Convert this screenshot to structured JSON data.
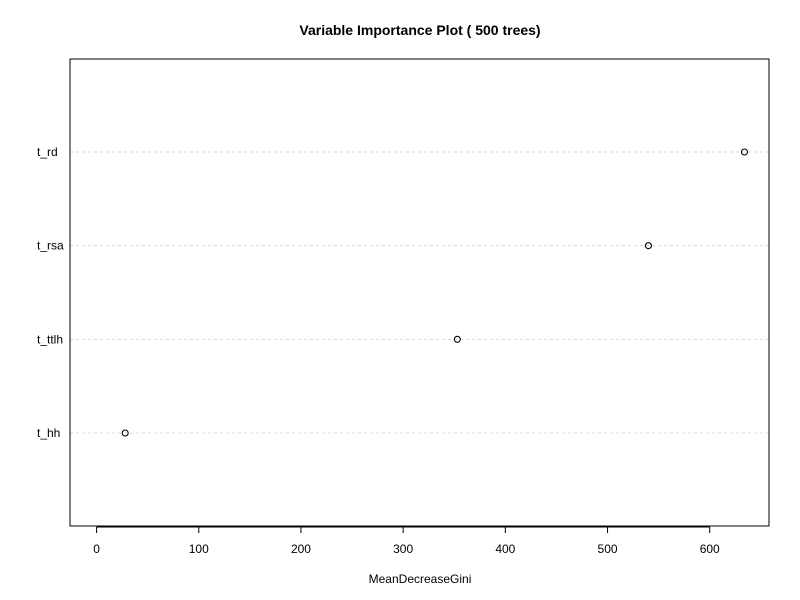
{
  "chart_data": {
    "type": "scatter",
    "title": "Variable Importance Plot ( 500  trees)",
    "xlabel": "MeanDecreaseGini",
    "ylabel": "",
    "categories": [
      "t_rd",
      "t_rsa",
      "t_ttlh",
      "t_hh"
    ],
    "values": [
      634,
      540,
      353,
      28
    ],
    "xlim": [
      -26,
      658
    ],
    "xticks": [
      0,
      100,
      200,
      300,
      400,
      500,
      600
    ],
    "grid": "horizontal dotted lines at each variable",
    "legend": "none",
    "colors": {
      "points": "#000000",
      "gridlines": "#d9d9d9",
      "frame": "#000000"
    }
  }
}
